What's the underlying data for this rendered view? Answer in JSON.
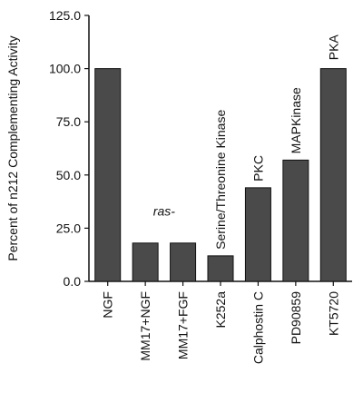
{
  "chart_data": {
    "type": "bar",
    "title": "",
    "xlabel": "",
    "ylabel": "Percent of n212 Complementing Activity",
    "ylim": [
      0,
      125
    ],
    "yticks": [
      "0.0",
      "25.0",
      "50.0",
      "75.0",
      "100.0",
      "125.0"
    ],
    "grid": false,
    "categories": [
      "NGF",
      "MM17+NGF",
      "MM17+FGF",
      "K252a",
      "Calphostin C",
      "PD90859",
      "KT5720"
    ],
    "values": [
      100,
      18,
      18,
      12,
      44,
      57,
      100
    ],
    "bar_color": "#4a4a4a",
    "annotations": [
      {
        "text": "ras-",
        "italic": true,
        "category_span": [
          1,
          2
        ],
        "y": 31
      },
      {
        "text": "Serine/Threonine Kinase",
        "italic": false,
        "category": 3,
        "y": 15
      },
      {
        "text": "PKC",
        "italic": false,
        "category": 4,
        "y": 47
      },
      {
        "text": "MAPKinase",
        "italic": false,
        "category": 5,
        "y": 60
      },
      {
        "text": "PKA",
        "italic": false,
        "category": 6,
        "y": 104
      }
    ]
  }
}
